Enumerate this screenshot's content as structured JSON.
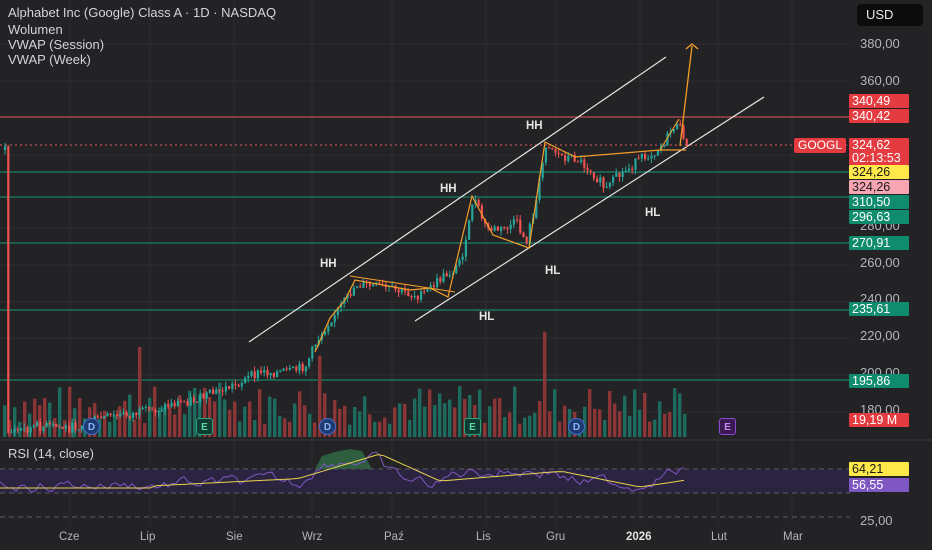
{
  "header": {
    "title": "Alphabet Inc (Google) Class A · 1D · NASDAQ",
    "indicators": [
      "Wolumen",
      "VWAP (Session)",
      "VWAP (Week)"
    ]
  },
  "currency_button": "USD",
  "symbol_tag": "GOOGL",
  "price_axis_labels": [
    "380,00",
    "360,00",
    "280,00",
    "260,00",
    "240,00",
    "220,00",
    "200,00",
    "180,00"
  ],
  "rsi": {
    "label": "RSI (14, close)",
    "axis_labels": [
      "25,00"
    ],
    "value": "64,21",
    "ma_value": "56,55"
  },
  "badges": [
    {
      "text": "340,49",
      "bg": "#e33b40",
      "fg": "#ffffff"
    },
    {
      "text": "340,42",
      "bg": "#e33b40",
      "fg": "#ffffff"
    },
    {
      "text": "324,62",
      "bg": "#e33b40",
      "fg": "#ffffff"
    },
    {
      "text": "02:13:53",
      "bg": "#e33b40",
      "fg": "#ffffff"
    },
    {
      "text": "324,26",
      "bg": "#ffe84a",
      "fg": "#1a1a1a"
    },
    {
      "text": "324,26",
      "bg": "#f7a4b3",
      "fg": "#1a1a1a"
    },
    {
      "text": "310,50",
      "bg": "#0f8c6e",
      "fg": "#ffffff"
    },
    {
      "text": "296,63",
      "bg": "#0f8c6e",
      "fg": "#ffffff"
    },
    {
      "text": "270,91",
      "bg": "#0f8c6e",
      "fg": "#ffffff"
    },
    {
      "text": "235,61",
      "bg": "#0f8c6e",
      "fg": "#ffffff"
    },
    {
      "text": "195,86",
      "bg": "#0f8c6e",
      "fg": "#ffffff"
    },
    {
      "text": "19,19 M",
      "bg": "#e33b40",
      "fg": "#ffffff"
    }
  ],
  "x_axis_labels": [
    "Cze",
    "Lip",
    "Sie",
    "Wrz",
    "Paź",
    "Lis",
    "Gru",
    "2026",
    "Lut",
    "Mar"
  ],
  "annotations": [
    "HH",
    "HH",
    "HH",
    "HL",
    "HL",
    "HL"
  ],
  "events": [
    "D",
    "E",
    "D",
    "E",
    "D",
    "E"
  ],
  "colors": {
    "up": "#26a69a",
    "down": "#ef5350",
    "accent": "#f59d2a",
    "rsi_line": "#7e57c2",
    "rsi_ma": "#e8d44d"
  },
  "chart_data": {
    "type": "candlestick",
    "title": "Alphabet Inc (Google) Class A · 1D · NASDAQ",
    "x": [
      "Cze",
      "Lip",
      "Sie",
      "Wrz",
      "Paź",
      "Lis",
      "Gru",
      "2026",
      "Lut",
      "Mar"
    ],
    "close_path": [
      {
        "x": "Cze",
        "y": 167
      },
      {
        "x": "Lip",
        "y": 180
      },
      {
        "x": "Sie",
        "y": 197
      },
      {
        "x": "Wrz",
        "y": 215
      },
      {
        "x": "Wrz",
        "y": 251
      },
      {
        "x": "Paź",
        "y": 244
      },
      {
        "x": "Paź",
        "y": 250
      },
      {
        "x": "Lis",
        "y": 300
      },
      {
        "x": "Lis",
        "y": 275
      },
      {
        "x": "Gru",
        "y": 322
      },
      {
        "x": "Gru",
        "y": 310
      },
      {
        "x": "2026",
        "y": 322
      },
      {
        "x": "2026",
        "y": 335
      },
      {
        "x": "2026",
        "y": 324.62
      }
    ],
    "ylim": [
      175,
      390
    ],
    "horizontal_levels": [
      340.42,
      324.26,
      310.5,
      270.91,
      235.61,
      195.86
    ],
    "rsi": {
      "last": 64.21,
      "ma": 56.55,
      "levels": [
        70,
        50,
        30
      ]
    },
    "volume_last": "19,19 M"
  }
}
